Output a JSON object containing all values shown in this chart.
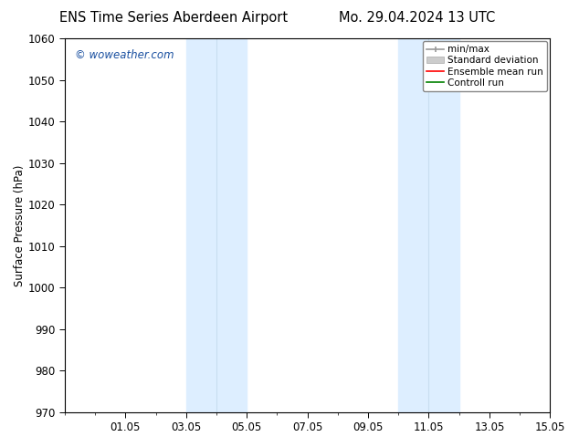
{
  "title_left": "ENS Time Series Aberdeen Airport",
  "title_right": "Mo. 29.04.2024 13 UTC",
  "ylabel": "Surface Pressure (hPa)",
  "ylim": [
    970,
    1060
  ],
  "yticks": [
    970,
    980,
    990,
    1000,
    1010,
    1020,
    1030,
    1040,
    1050,
    1060
  ],
  "xlim": [
    0.0,
    16.0
  ],
  "xtick_positions": [
    2,
    4,
    6,
    8,
    10,
    12,
    14,
    16
  ],
  "xtick_labels": [
    "01.05",
    "03.05",
    "05.05",
    "07.05",
    "09.05",
    "11.05",
    "13.05",
    "15.05"
  ],
  "shaded_bands": [
    {
      "xstart": 4.0,
      "xend": 5.0,
      "color": "#ddeeff"
    },
    {
      "xstart": 5.0,
      "xend": 6.0,
      "color": "#ddeeff"
    },
    {
      "xstart": 11.0,
      "xend": 12.0,
      "color": "#ddeeff"
    },
    {
      "xstart": 12.0,
      "xend": 13.0,
      "color": "#ddeeff"
    }
  ],
  "band_dividers": [
    5.0,
    12.0
  ],
  "watermark": "© woweather.com",
  "watermark_color": "#1a50a0",
  "legend_entries": [
    {
      "label": "min/max",
      "color": "#999999",
      "lw": 1.2,
      "style": "solid",
      "type": "line_with_ticks"
    },
    {
      "label": "Standard deviation",
      "color": "#cccccc",
      "lw": 6,
      "style": "solid",
      "type": "patch"
    },
    {
      "label": "Ensemble mean run",
      "color": "red",
      "lw": 1.2,
      "style": "solid",
      "type": "line"
    },
    {
      "label": "Controll run",
      "color": "green",
      "lw": 1.2,
      "style": "solid",
      "type": "line"
    }
  ],
  "bg_color": "#ffffff",
  "spine_color": "#000000",
  "font_family": "DejaVu Sans",
  "title_fontsize": 10.5,
  "tick_fontsize": 8.5,
  "ylabel_fontsize": 8.5,
  "watermark_fontsize": 8.5,
  "legend_fontsize": 7.5
}
